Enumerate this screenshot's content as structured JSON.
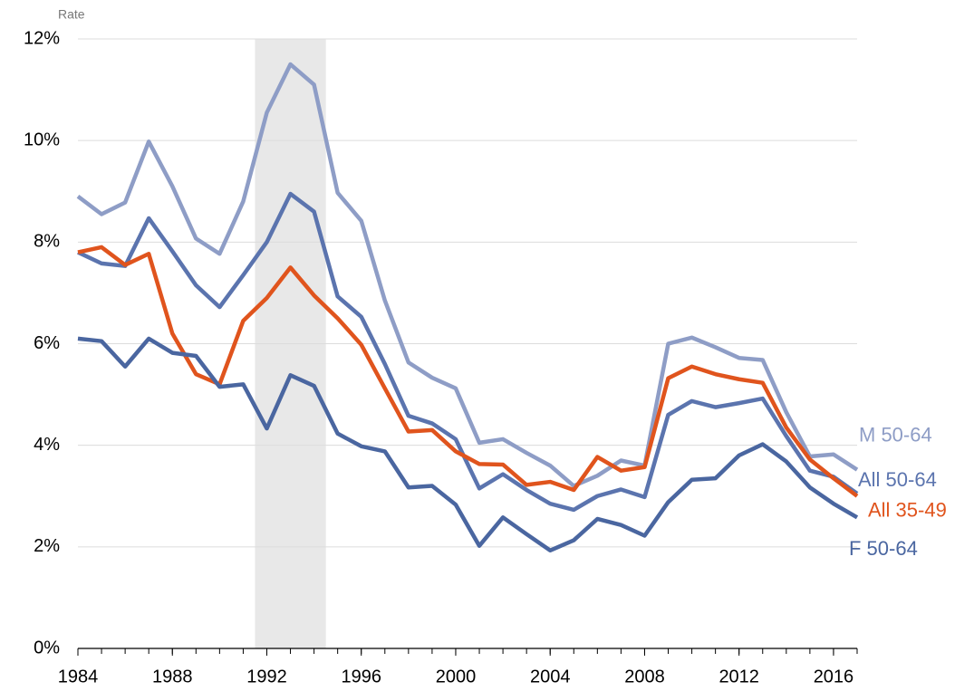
{
  "chart_data": {
    "type": "line",
    "ylabel": "Rate",
    "x": [
      1984,
      1985,
      1986,
      1987,
      1988,
      1989,
      1990,
      1991,
      1992,
      1993,
      1994,
      1995,
      1996,
      1997,
      1998,
      1999,
      2000,
      2001,
      2002,
      2003,
      2004,
      2005,
      2006,
      2007,
      2008,
      2009,
      2010,
      2011,
      2012,
      2013,
      2014,
      2015,
      2016,
      2017
    ],
    "xlim": [
      1984,
      2017
    ],
    "xticks": [
      1984,
      1988,
      1992,
      1996,
      2000,
      2004,
      2008,
      2012,
      2016
    ],
    "ylim": [
      0,
      12
    ],
    "yticks": [
      {
        "value": 0,
        "label": "0%"
      },
      {
        "value": 2,
        "label": "2%"
      },
      {
        "value": 4,
        "label": "4%"
      },
      {
        "value": 6,
        "label": "6%"
      },
      {
        "value": 8,
        "label": "8%"
      },
      {
        "value": 10,
        "label": "10%"
      },
      {
        "value": 12,
        "label": "12%"
      }
    ],
    "grid": true,
    "shade": [
      1991.5,
      1994.5
    ],
    "series": [
      {
        "name": "M 50-64",
        "color": "#8e9dc6",
        "values": [
          8.9,
          8.55,
          8.78,
          9.98,
          9.1,
          8.07,
          7.77,
          8.8,
          10.55,
          11.5,
          11.1,
          8.97,
          8.42,
          6.85,
          5.63,
          5.33,
          5.12,
          4.05,
          4.12,
          3.85,
          3.6,
          3.2,
          3.4,
          3.7,
          3.6,
          6.0,
          6.12,
          5.93,
          5.72,
          5.68,
          4.65,
          3.78,
          3.82,
          3.52
        ]
      },
      {
        "name": "All 50-64",
        "color": "#5b74ae",
        "values": [
          7.8,
          7.58,
          7.53,
          8.47,
          7.82,
          7.15,
          6.72,
          7.35,
          8.0,
          8.95,
          8.6,
          6.93,
          6.53,
          5.6,
          4.58,
          4.43,
          4.12,
          3.15,
          3.43,
          3.12,
          2.85,
          2.73,
          3.0,
          3.13,
          2.98,
          4.6,
          4.87,
          4.75,
          4.83,
          4.92,
          4.18,
          3.5,
          3.38,
          3.05
        ]
      },
      {
        "name": "All 35-49",
        "color": "#e0541d",
        "values": [
          7.8,
          7.9,
          7.55,
          7.77,
          6.2,
          5.4,
          5.2,
          6.45,
          6.9,
          7.5,
          6.95,
          6.5,
          5.98,
          5.12,
          4.27,
          4.3,
          3.88,
          3.63,
          3.62,
          3.22,
          3.28,
          3.12,
          3.77,
          3.5,
          3.57,
          5.32,
          5.55,
          5.4,
          5.3,
          5.23,
          4.35,
          3.72,
          3.35,
          3.0
        ]
      },
      {
        "name": "F 50-64",
        "color": "#4a66a0",
        "values": [
          6.1,
          6.05,
          5.55,
          6.1,
          5.82,
          5.76,
          5.15,
          5.2,
          4.33,
          5.38,
          5.17,
          4.23,
          3.98,
          3.88,
          3.17,
          3.2,
          2.83,
          2.02,
          2.58,
          2.25,
          1.93,
          2.13,
          2.55,
          2.43,
          2.22,
          2.88,
          3.32,
          3.35,
          3.8,
          4.02,
          3.68,
          3.17,
          2.85,
          2.58
        ]
      }
    ]
  }
}
